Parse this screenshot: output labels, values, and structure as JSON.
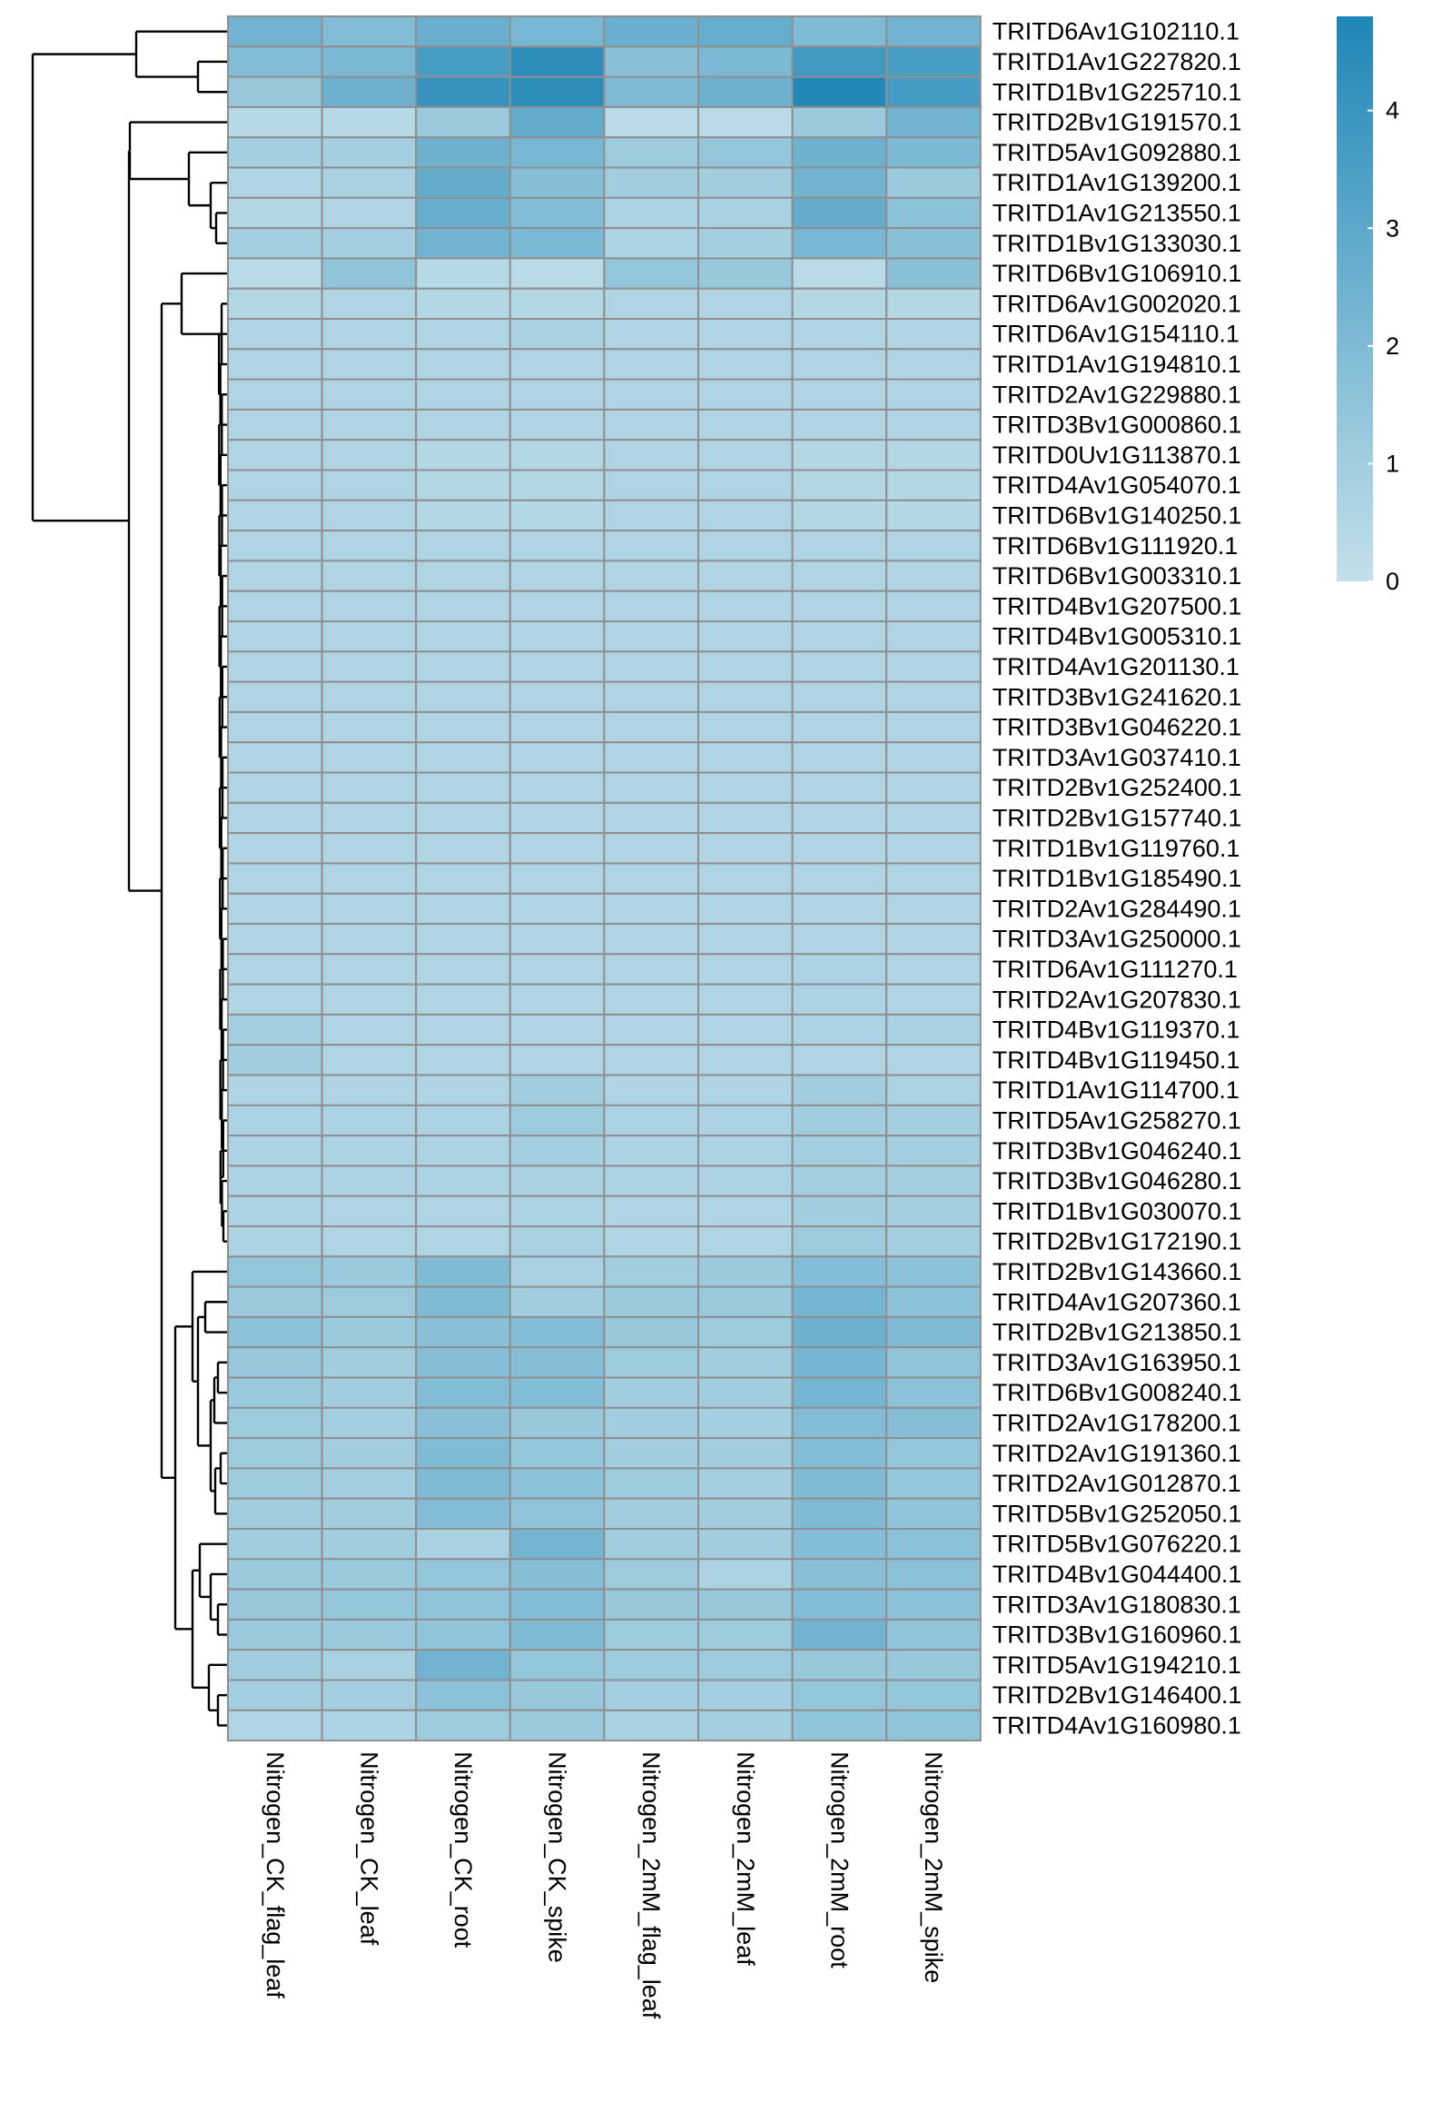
{
  "chart_data": {
    "type": "heatmap",
    "title": "",
    "xlabel": "",
    "ylabel": "",
    "columns": [
      "Nitrogen_CK_flag_leaf",
      "Nitrogen_CK_leaf",
      "Nitrogen_CK_root",
      "Nitrogen_CK_spike",
      "Nitrogen_2mM_flag_leaf",
      "Nitrogen_2mM_leaf",
      "Nitrogen_2mM_root",
      "Nitrogen_2mM_spike"
    ],
    "rows": [
      "TRITD6Av1G102110.1",
      "TRITD1Av1G227820.1",
      "TRITD1Bv1G225710.1",
      "TRITD2Bv1G191570.1",
      "TRITD5Av1G092880.1",
      "TRITD1Av1G139200.1",
      "TRITD1Av1G213550.1",
      "TRITD1Bv1G133030.1",
      "TRITD6Bv1G106910.1",
      "TRITD6Av1G002020.1",
      "TRITD6Av1G154110.1",
      "TRITD1Av1G194810.1",
      "TRITD2Av1G229880.1",
      "TRITD3Bv1G000860.1",
      "TRITD0Uv1G113870.1",
      "TRITD4Av1G054070.1",
      "TRITD6Bv1G140250.1",
      "TRITD6Bv1G111920.1",
      "TRITD6Bv1G003310.1",
      "TRITD4Bv1G207500.1",
      "TRITD4Bv1G005310.1",
      "TRITD4Av1G201130.1",
      "TRITD3Bv1G241620.1",
      "TRITD3Bv1G046220.1",
      "TRITD3Av1G037410.1",
      "TRITD2Bv1G252400.1",
      "TRITD2Bv1G157740.1",
      "TRITD1Bv1G119760.1",
      "TRITD1Bv1G185490.1",
      "TRITD2Av1G284490.1",
      "TRITD3Av1G250000.1",
      "TRITD6Av1G111270.1",
      "TRITD2Av1G207830.1",
      "TRITD4Bv1G119370.1",
      "TRITD4Bv1G119450.1",
      "TRITD1Av1G114700.1",
      "TRITD5Av1G258270.1",
      "TRITD3Bv1G046240.1",
      "TRITD3Bv1G046280.1",
      "TRITD1Bv1G030070.1",
      "TRITD2Bv1G172190.1",
      "TRITD2Bv1G143660.1",
      "TRITD4Av1G207360.1",
      "TRITD2Bv1G213850.1",
      "TRITD3Av1G163950.1",
      "TRITD6Bv1G008240.1",
      "TRITD2Av1G178200.1",
      "TRITD2Av1G191360.1",
      "TRITD2Av1G012870.1",
      "TRITD5Bv1G252050.1",
      "TRITD5Bv1G076220.1",
      "TRITD4Bv1G044400.1",
      "TRITD3Av1G180830.1",
      "TRITD3Bv1G160960.1",
      "TRITD5Av1G194210.1",
      "TRITD2Bv1G146400.1",
      "TRITD4Av1G160980.1"
    ],
    "values": [
      [
        2.4,
        1.9,
        2.6,
        2.2,
        2.6,
        2.7,
        2.0,
        2.4
      ],
      [
        1.9,
        2.1,
        3.6,
        4.4,
        1.7,
        2.1,
        3.8,
        3.6
      ],
      [
        1.3,
        2.5,
        4.1,
        4.4,
        2.0,
        2.5,
        4.7,
        3.7
      ],
      [
        0.4,
        0.4,
        1.2,
        2.8,
        0.3,
        0.3,
        1.2,
        2.4
      ],
      [
        0.9,
        0.9,
        2.5,
        2.2,
        1.1,
        1.4,
        2.5,
        2.1
      ],
      [
        0.6,
        0.8,
        2.8,
        1.8,
        1.0,
        1.0,
        2.4,
        1.2
      ],
      [
        0.5,
        0.6,
        2.7,
        1.9,
        0.7,
        0.8,
        2.8,
        1.6
      ],
      [
        0.9,
        0.9,
        2.4,
        2.1,
        0.7,
        0.9,
        2.2,
        1.7
      ],
      [
        0.3,
        1.5,
        0.4,
        0.3,
        1.4,
        1.3,
        0.3,
        1.7
      ],
      [
        0.5,
        0.6,
        0.5,
        0.5,
        0.6,
        0.6,
        0.5,
        0.5
      ],
      [
        0.6,
        0.6,
        0.6,
        0.8,
        0.6,
        0.6,
        0.6,
        0.6
      ],
      [
        0.6,
        0.6,
        0.6,
        0.6,
        0.6,
        0.6,
        0.6,
        0.6
      ],
      [
        0.6,
        0.6,
        0.6,
        0.6,
        0.6,
        0.6,
        0.6,
        0.6
      ],
      [
        0.6,
        0.6,
        0.6,
        0.6,
        0.6,
        0.6,
        0.6,
        0.6
      ],
      [
        0.6,
        0.6,
        0.5,
        0.5,
        0.6,
        0.6,
        0.5,
        0.5
      ],
      [
        0.6,
        0.6,
        0.5,
        0.5,
        0.6,
        0.6,
        0.5,
        0.5
      ],
      [
        0.6,
        0.6,
        0.5,
        0.5,
        0.6,
        0.6,
        0.5,
        0.5
      ],
      [
        0.6,
        0.6,
        0.6,
        0.6,
        0.6,
        0.6,
        0.6,
        0.6
      ],
      [
        0.6,
        0.6,
        0.6,
        0.6,
        0.6,
        0.6,
        0.6,
        0.6
      ],
      [
        0.6,
        0.6,
        0.6,
        0.6,
        0.6,
        0.6,
        0.6,
        0.6
      ],
      [
        0.6,
        0.6,
        0.6,
        0.6,
        0.6,
        0.6,
        0.6,
        0.6
      ],
      [
        0.6,
        0.6,
        0.6,
        0.6,
        0.6,
        0.6,
        0.6,
        0.6
      ],
      [
        0.6,
        0.6,
        0.6,
        0.6,
        0.6,
        0.6,
        0.6,
        0.6
      ],
      [
        0.6,
        0.6,
        0.6,
        0.6,
        0.6,
        0.6,
        0.6,
        0.6
      ],
      [
        0.6,
        0.6,
        0.6,
        0.6,
        0.6,
        0.6,
        0.6,
        0.6
      ],
      [
        0.6,
        0.6,
        0.6,
        0.6,
        0.6,
        0.6,
        0.6,
        0.6
      ],
      [
        0.6,
        0.6,
        0.6,
        0.6,
        0.6,
        0.6,
        0.6,
        0.6
      ],
      [
        0.6,
        0.6,
        0.6,
        0.6,
        0.6,
        0.6,
        0.6,
        0.6
      ],
      [
        0.6,
        0.6,
        0.6,
        0.6,
        0.6,
        0.6,
        0.6,
        0.6
      ],
      [
        0.6,
        0.6,
        0.6,
        0.6,
        0.6,
        0.6,
        0.6,
        0.6
      ],
      [
        0.6,
        0.6,
        0.6,
        0.6,
        0.6,
        0.6,
        0.6,
        0.6
      ],
      [
        0.6,
        0.6,
        0.6,
        0.6,
        0.6,
        0.6,
        0.7,
        0.6
      ],
      [
        0.6,
        0.6,
        0.6,
        0.6,
        0.6,
        0.6,
        0.7,
        0.6
      ],
      [
        0.9,
        0.6,
        0.6,
        0.6,
        0.6,
        0.6,
        0.7,
        0.8
      ],
      [
        1.0,
        0.6,
        0.6,
        0.6,
        0.6,
        0.6,
        0.6,
        0.6
      ],
      [
        0.6,
        0.6,
        0.6,
        1.0,
        0.6,
        0.6,
        1.0,
        0.7
      ],
      [
        0.7,
        0.7,
        0.7,
        1.1,
        0.7,
        0.7,
        1.0,
        0.9
      ],
      [
        0.7,
        0.7,
        0.7,
        0.9,
        0.7,
        0.7,
        0.9,
        0.9
      ],
      [
        0.7,
        0.7,
        0.7,
        0.8,
        0.7,
        0.7,
        0.9,
        0.9
      ],
      [
        0.7,
        0.6,
        0.6,
        0.7,
        0.6,
        0.6,
        1.0,
        0.9
      ],
      [
        0.7,
        0.6,
        0.6,
        0.8,
        0.6,
        0.6,
        1.1,
        0.9
      ],
      [
        1.4,
        1.2,
        2.0,
        0.8,
        1.0,
        1.2,
        1.9,
        1.6
      ],
      [
        1.2,
        1.1,
        2.0,
        1.0,
        1.2,
        1.2,
        2.3,
        1.6
      ],
      [
        1.6,
        1.2,
        1.7,
        1.9,
        1.3,
        1.1,
        2.5,
        2.0
      ],
      [
        1.3,
        1.0,
        1.8,
        1.8,
        1.1,
        1.0,
        2.3,
        1.5
      ],
      [
        1.2,
        1.0,
        1.9,
        1.9,
        1.0,
        1.0,
        2.3,
        1.6
      ],
      [
        1.1,
        0.9,
        1.7,
        1.3,
        1.0,
        0.9,
        1.9,
        1.8
      ],
      [
        1.1,
        1.0,
        2.0,
        1.4,
        1.0,
        1.0,
        1.9,
        1.4
      ],
      [
        1.1,
        0.9,
        2.0,
        1.6,
        1.1,
        0.9,
        2.0,
        1.4
      ],
      [
        1.0,
        1.0,
        1.9,
        1.5,
        1.0,
        1.0,
        2.0,
        1.5
      ],
      [
        1.0,
        1.0,
        0.8,
        2.3,
        1.0,
        1.0,
        1.9,
        1.6
      ],
      [
        1.2,
        1.2,
        1.4,
        1.8,
        1.1,
        0.7,
        1.7,
        1.6
      ],
      [
        1.3,
        1.4,
        1.5,
        1.9,
        1.3,
        1.3,
        1.9,
        1.6
      ],
      [
        1.2,
        1.2,
        1.5,
        2.0,
        1.1,
        1.1,
        2.4,
        1.5
      ],
      [
        1.0,
        0.8,
        2.4,
        1.4,
        1.1,
        1.1,
        1.3,
        1.3
      ],
      [
        0.9,
        0.9,
        1.6,
        1.3,
        0.9,
        0.9,
        1.4,
        1.4
      ],
      [
        0.6,
        0.7,
        1.1,
        1.2,
        0.8,
        0.9,
        1.5,
        1.5
      ]
    ],
    "color_scale": {
      "min": 0,
      "max": 4.8,
      "low_color": "#c3e0ea",
      "high_color": "#1f86b7",
      "ticks": [
        0,
        1,
        2,
        3,
        4
      ]
    },
    "cell_border_color": "#8f8f8f",
    "row_dendrogram": true,
    "column_dendrogram": false,
    "legend_placement": "top-right"
  }
}
